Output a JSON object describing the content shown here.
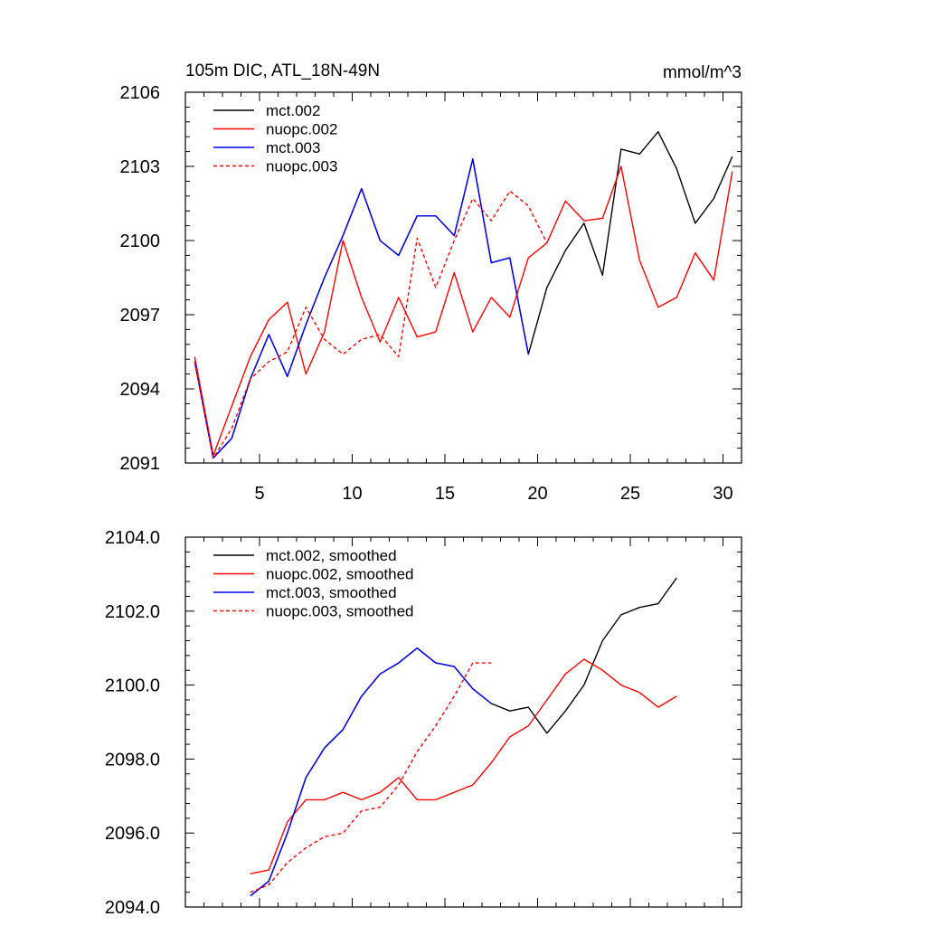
{
  "chart_data": [
    {
      "type": "line",
      "title": "105m DIC, ATL_18N-49N",
      "units": "mmol/m^3",
      "xlim": [
        1,
        31
      ],
      "ylim": [
        2091,
        2106
      ],
      "x_ticks": [
        5,
        10,
        15,
        20,
        25,
        30
      ],
      "y_ticks": [
        2091,
        2094,
        2097,
        2100,
        2103,
        2106
      ],
      "x_tick_labels": [
        "5",
        "10",
        "15",
        "20",
        "25",
        "30"
      ],
      "y_tick_labels": [
        "2091",
        "2094",
        "2097",
        "2100",
        "2103",
        "2106"
      ],
      "legend_position": "top-left",
      "series": [
        {
          "name": "mct.002",
          "color": "#000000",
          "dash": "solid",
          "x": [
            1.5,
            2.5,
            3.5,
            4.5,
            5.5,
            6.5,
            7.5,
            8.5,
            9.5,
            10.5,
            11.5,
            12.5,
            13.5,
            14.5,
            15.5,
            16.5,
            17.5,
            18.5,
            19.5,
            20.5,
            21.5,
            22.5,
            23.5,
            24.5,
            25.5,
            26.5,
            27.5,
            28.5,
            29.5,
            30.5
          ],
          "y": [
            2095.1,
            2091.2,
            2092.0,
            2094.4,
            2096.2,
            2094.5,
            2096.6,
            2098.5,
            2100.2,
            2102.1,
            2100.0,
            2099.4,
            2101.0,
            2101.0,
            2100.2,
            2103.3,
            2099.1,
            2099.3,
            2095.4,
            2098.1,
            2099.6,
            2100.7,
            2098.6,
            2103.7,
            2103.5,
            2104.4,
            2102.9,
            2100.7,
            2101.7,
            2103.4
          ]
        },
        {
          "name": "nuopc.002",
          "color": "#ff0000",
          "dash": "solid",
          "x": [
            1.5,
            2.5,
            3.5,
            4.5,
            5.5,
            6.5,
            7.5,
            8.5,
            9.5,
            10.5,
            11.5,
            12.5,
            13.5,
            14.5,
            15.5,
            16.5,
            17.5,
            18.5,
            19.5,
            20.5,
            21.5,
            22.5,
            23.5,
            24.5,
            25.5,
            26.5,
            27.5,
            28.5,
            29.5,
            30.5
          ],
          "y": [
            2095.3,
            2091.3,
            2093.3,
            2095.3,
            2096.8,
            2097.5,
            2094.6,
            2096.3,
            2100.0,
            2097.7,
            2095.9,
            2097.7,
            2096.1,
            2096.3,
            2098.7,
            2096.3,
            2097.7,
            2096.9,
            2099.3,
            2099.9,
            2101.6,
            2100.8,
            2100.9,
            2103.0,
            2099.2,
            2097.3,
            2097.7,
            2099.5,
            2098.4,
            2102.8
          ]
        },
        {
          "name": "mct.003",
          "color": "#0000ff",
          "dash": "solid",
          "x": [
            1.5,
            2.5,
            3.5,
            4.5,
            5.5,
            6.5,
            7.5,
            8.5,
            9.5,
            10.5,
            11.5,
            12.5,
            13.5,
            14.5,
            15.5,
            16.5,
            17.5,
            18.5,
            19.5
          ],
          "y": [
            2095.1,
            2091.2,
            2092.0,
            2094.4,
            2096.2,
            2094.5,
            2096.6,
            2098.5,
            2100.2,
            2102.1,
            2100.0,
            2099.4,
            2101.0,
            2101.0,
            2100.2,
            2103.3,
            2099.1,
            2099.3,
            2095.4
          ]
        },
        {
          "name": "nuopc.003",
          "color": "#ff0000",
          "dash": "dashed",
          "x": [
            1.5,
            2.5,
            3.5,
            4.5,
            5.5,
            6.5,
            7.5,
            8.5,
            9.5,
            10.5,
            11.5,
            12.5,
            13.5,
            14.5,
            15.5,
            16.5,
            17.5,
            18.5,
            19.5,
            20.5
          ],
          "y": [
            2095.1,
            2091.2,
            2092.4,
            2094.4,
            2095.1,
            2095.5,
            2097.3,
            2096.0,
            2095.4,
            2096.0,
            2096.2,
            2095.3,
            2100.1,
            2098.1,
            2100.0,
            2101.7,
            2100.8,
            2102.0,
            2101.4,
            2099.9
          ]
        }
      ]
    },
    {
      "type": "line",
      "xlim": [
        1,
        31
      ],
      "ylim": [
        2094,
        2104
      ],
      "x_ticks": [
        5,
        10,
        15,
        20,
        25,
        30
      ],
      "y_ticks": [
        2094,
        2096,
        2098,
        2100,
        2102,
        2104
      ],
      "y_tick_labels": [
        "2094.0",
        "2096.0",
        "2098.0",
        "2100.0",
        "2102.0",
        "2104.0"
      ],
      "legend_position": "top-left",
      "series": [
        {
          "name": "mct.002, smoothed",
          "color": "#000000",
          "dash": "solid",
          "x": [
            4.5,
            5.5,
            6.5,
            7.5,
            8.5,
            9.5,
            10.5,
            11.5,
            12.5,
            13.5,
            14.5,
            15.5,
            16.5,
            17.5,
            18.5,
            19.5,
            20.5,
            21.5,
            22.5,
            23.5,
            24.5,
            25.5,
            26.5,
            27.5
          ],
          "y": [
            2094.3,
            2094.7,
            2096.0,
            2097.5,
            2098.3,
            2098.8,
            2099.7,
            2100.3,
            2100.6,
            2101.0,
            2100.6,
            2100.5,
            2099.9,
            2099.5,
            2099.3,
            2099.4,
            2098.7,
            2099.3,
            2100.0,
            2101.2,
            2101.9,
            2102.1,
            2102.2,
            2102.9
          ]
        },
        {
          "name": "nuopc.002, smoothed",
          "color": "#ff0000",
          "dash": "solid",
          "x": [
            4.5,
            5.5,
            6.5,
            7.5,
            8.5,
            9.5,
            10.5,
            11.5,
            12.5,
            13.5,
            14.5,
            15.5,
            16.5,
            17.5,
            18.5,
            19.5,
            20.5,
            21.5,
            22.5,
            23.5,
            24.5,
            25.5,
            26.5,
            27.5
          ],
          "y": [
            2094.9,
            2095.0,
            2096.3,
            2096.9,
            2096.9,
            2097.1,
            2096.9,
            2097.1,
            2097.5,
            2096.9,
            2096.9,
            2097.1,
            2097.3,
            2097.9,
            2098.6,
            2098.9,
            2099.6,
            2100.3,
            2100.7,
            2100.4,
            2100.0,
            2099.8,
            2099.4,
            2099.7
          ]
        },
        {
          "name": "mct.003, smoothed",
          "color": "#0000ff",
          "dash": "solid",
          "x": [
            4.5,
            5.5,
            6.5,
            7.5,
            8.5,
            9.5,
            10.5,
            11.5,
            12.5,
            13.5,
            14.5,
            15.5,
            16.5,
            17.5
          ],
          "y": [
            2094.3,
            2094.7,
            2096.0,
            2097.5,
            2098.3,
            2098.8,
            2099.7,
            2100.3,
            2100.6,
            2101.0,
            2100.6,
            2100.5,
            2099.9,
            2099.5
          ]
        },
        {
          "name": "nuopc.003, smoothed",
          "color": "#ff0000",
          "dash": "dashed",
          "x": [
            4.5,
            5.5,
            6.5,
            7.5,
            8.5,
            9.5,
            10.5,
            11.5,
            12.5,
            13.5,
            14.5,
            15.5,
            16.5,
            17.5
          ],
          "y": [
            2094.4,
            2094.6,
            2095.2,
            2095.6,
            2095.9,
            2096.0,
            2096.6,
            2096.7,
            2097.3,
            2098.2,
            2098.9,
            2099.7,
            2100.6,
            2100.6
          ]
        }
      ]
    }
  ]
}
